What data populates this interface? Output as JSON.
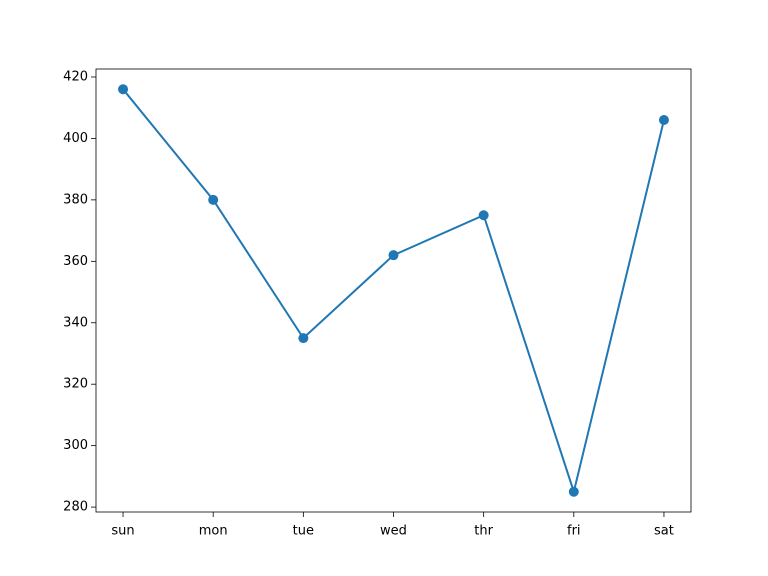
{
  "chart_data": {
    "type": "line",
    "categories": [
      "sun",
      "mon",
      "tue",
      "wed",
      "thr",
      "fri",
      "sat"
    ],
    "series": [
      {
        "color": "#1f77b4",
        "values": [
          416,
          380,
          335,
          362,
          375,
          285,
          406
        ]
      }
    ],
    "ylim": [
      278.4,
      422.6
    ],
    "yticks": [
      280,
      300,
      320,
      340,
      360,
      380,
      400,
      420
    ],
    "markers": true
  }
}
